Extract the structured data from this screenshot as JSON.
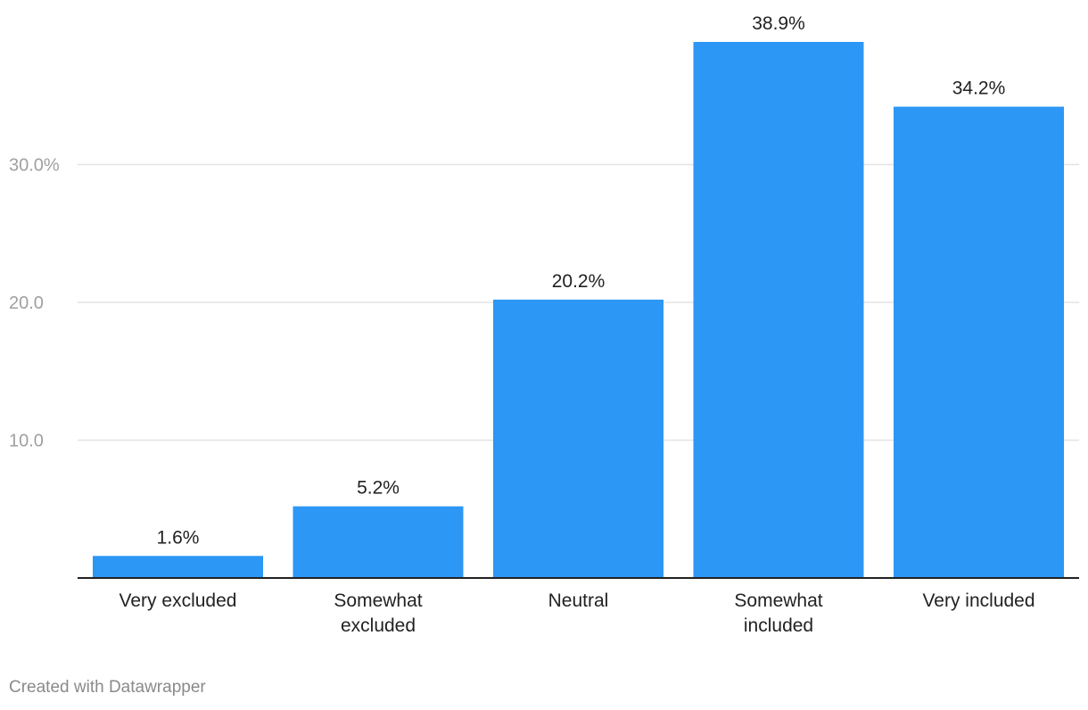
{
  "chart_data": {
    "type": "bar",
    "categories": [
      [
        "Very excluded"
      ],
      [
        "Somewhat",
        "excluded"
      ],
      [
        "Neutral"
      ],
      [
        "Somewhat",
        "included"
      ],
      [
        "Very included"
      ]
    ],
    "values": [
      1.6,
      5.2,
      20.2,
      38.9,
      34.2
    ],
    "data_labels": [
      "1.6%",
      "5.2%",
      "20.2%",
      "38.9%",
      "34.2%"
    ],
    "y_ticks": [
      {
        "value": 10,
        "label": "10.0"
      },
      {
        "value": 20,
        "label": "20.0"
      },
      {
        "value": 30,
        "label": "30.0%"
      }
    ],
    "ylim": [
      0,
      40
    ],
    "grid": true,
    "bar_color": "#2c97f5",
    "title": "",
    "xlabel": "",
    "ylabel": ""
  },
  "footer": {
    "credit": "Created with Datawrapper"
  }
}
